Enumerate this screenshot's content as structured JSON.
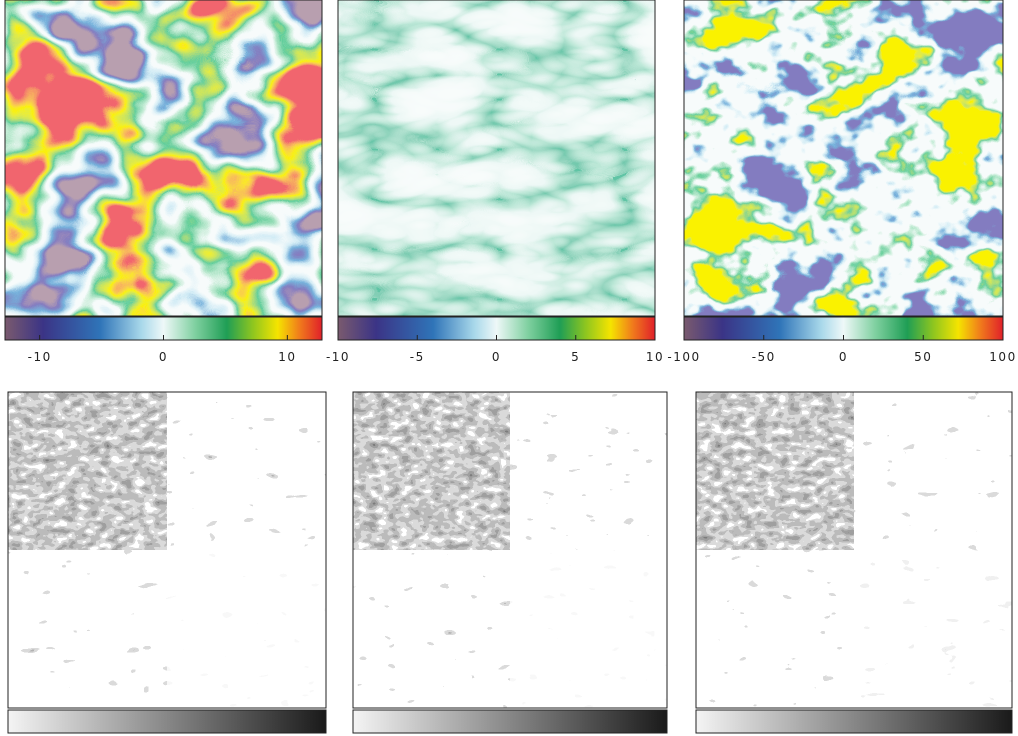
{
  "panels": [
    {
      "colorbar": {
        "lim": [
          -12.8,
          12.8
        ],
        "ticks": [
          -10,
          0,
          10
        ]
      }
    },
    {
      "colorbar": {
        "lim": [
          -10,
          10
        ],
        "ticks": [
          -10,
          -5,
          0,
          5,
          10
        ]
      }
    },
    {
      "colorbar": {
        "lim": [
          -100,
          100
        ],
        "ticks": [
          -100,
          -50,
          0,
          50,
          100
        ]
      }
    }
  ]
}
